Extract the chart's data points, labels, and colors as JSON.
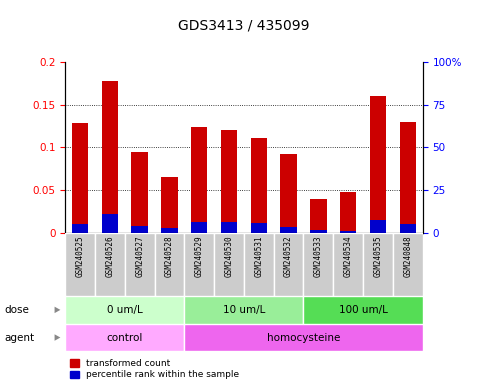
{
  "title": "GDS3413 / 435099",
  "samples": [
    "GSM240525",
    "GSM240526",
    "GSM240527",
    "GSM240528",
    "GSM240529",
    "GSM240530",
    "GSM240531",
    "GSM240532",
    "GSM240533",
    "GSM240534",
    "GSM240535",
    "GSM240848"
  ],
  "transformed_count": [
    0.128,
    0.178,
    0.095,
    0.065,
    0.124,
    0.12,
    0.111,
    0.092,
    0.04,
    0.048,
    0.16,
    0.13
  ],
  "percentile_rank": [
    0.01,
    0.022,
    0.008,
    0.006,
    0.013,
    0.012,
    0.011,
    0.007,
    0.003,
    0.002,
    0.015,
    0.01
  ],
  "bar_width": 0.55,
  "red_color": "#CC0000",
  "blue_color": "#0000CC",
  "ylim": [
    0,
    0.2
  ],
  "yticks": [
    0,
    0.05,
    0.1,
    0.15,
    0.2
  ],
  "ytick_labels": [
    "0",
    "0.05",
    "0.1",
    "0.15",
    "0.2"
  ],
  "y2lim": [
    0,
    100
  ],
  "y2ticks": [
    0,
    25,
    50,
    75,
    100
  ],
  "y2tick_labels": [
    "0",
    "25",
    "50",
    "75",
    "100%"
  ],
  "dose_groups": [
    {
      "label": "0 um/L",
      "start": 0,
      "end": 4,
      "color": "#CCFFCC"
    },
    {
      "label": "10 um/L",
      "start": 4,
      "end": 8,
      "color": "#99EE99"
    },
    {
      "label": "100 um/L",
      "start": 8,
      "end": 12,
      "color": "#55DD55"
    }
  ],
  "agent_groups": [
    {
      "label": "control",
      "start": 0,
      "end": 4,
      "color": "#FFAAFF"
    },
    {
      "label": "homocysteine",
      "start": 4,
      "end": 12,
      "color": "#EE66EE"
    }
  ],
  "dose_label": "dose",
  "agent_label": "agent",
  "legend_red": "transformed count",
  "legend_blue": "percentile rank within the sample",
  "tick_bg_color": "#CCCCCC",
  "plot_bg_color": "#FFFFFF",
  "title_fontsize": 10,
  "axis_fontsize": 7.5,
  "label_fontsize": 7.5
}
